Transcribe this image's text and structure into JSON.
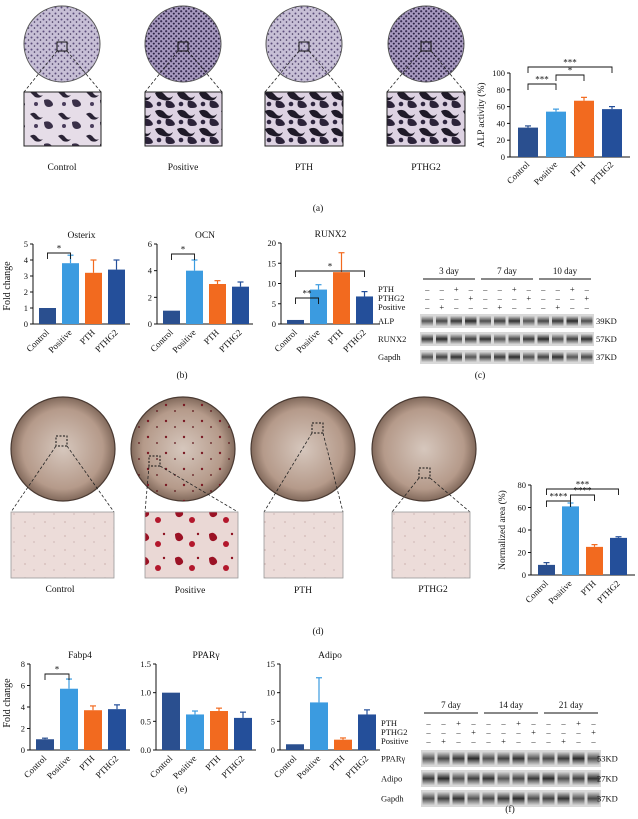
{
  "panels": {
    "a": {
      "label": "(a)",
      "images": [
        "Control",
        "Positive",
        "PTH",
        "PTHG2"
      ],
      "chart_data": {
        "type": "bar",
        "ylabel": "ALP activity (%)",
        "categories": [
          "Control",
          "Positive",
          "PTH",
          "PTHG2"
        ],
        "values": [
          35,
          54,
          67,
          57
        ],
        "errors": [
          2,
          3,
          4,
          3
        ],
        "ylim": [
          0,
          100
        ],
        "yticks": [
          "0",
          "20",
          "40",
          "60",
          "80",
          "100"
        ],
        "significance": [
          "***",
          "*",
          "***"
        ]
      }
    },
    "b": {
      "label": "(b)",
      "ylabel": "Fold change",
      "charts": [
        {
          "type": "bar",
          "title": "Osterix",
          "categories": [
            "Control",
            "Positive",
            "PTH",
            "PTHG2"
          ],
          "values": [
            1.0,
            3.8,
            3.2,
            3.4
          ],
          "errors": [
            0,
            0.5,
            0.8,
            0.6
          ],
          "ylim": [
            0,
            5
          ],
          "yticks": [
            "0",
            "1",
            "2",
            "3",
            "4",
            "5"
          ],
          "significance": [
            "*"
          ]
        },
        {
          "type": "bar",
          "title": "OCN",
          "categories": [
            "Control",
            "Positive",
            "PTH",
            "PTHG2"
          ],
          "values": [
            1.0,
            4.0,
            3.0,
            2.8
          ],
          "errors": [
            0,
            0.8,
            0.25,
            0.35
          ],
          "ylim": [
            0,
            6
          ],
          "yticks": [
            "0",
            "2",
            "4",
            "6"
          ],
          "significance": [
            "*"
          ]
        },
        {
          "type": "bar",
          "title": "RUNX2",
          "categories": [
            "Control",
            "Positive",
            "PTH",
            "PTHG2"
          ],
          "values": [
            1.0,
            8.5,
            12.8,
            6.8
          ],
          "errors": [
            0,
            1.2,
            4.8,
            1.2
          ],
          "ylim": [
            0,
            20
          ],
          "yticks": [
            "0",
            "5",
            "10",
            "15",
            "20"
          ],
          "significance": [
            "**",
            "*"
          ]
        }
      ]
    },
    "c": {
      "label": "(c)",
      "days": [
        "3 day",
        "7 day",
        "10 day"
      ],
      "rows": [
        {
          "name": "PTH",
          "signs": [
            "–",
            "–",
            "+",
            "–",
            "–",
            "–",
            "+",
            "–",
            "–",
            "–",
            "+",
            "–"
          ]
        },
        {
          "name": "PTHG2",
          "signs": [
            "–",
            "–",
            "–",
            "+",
            "–",
            "–",
            "–",
            "+",
            "–",
            "–",
            "–",
            "+"
          ]
        },
        {
          "name": "Positive",
          "signs": [
            "–",
            "+",
            "–",
            "–",
            "–",
            "+",
            "–",
            "–",
            "–",
            "+",
            "–",
            "–"
          ]
        }
      ],
      "bands": [
        {
          "name": "ALP",
          "kd": "39KD"
        },
        {
          "name": "RUNX2",
          "kd": "57KD"
        },
        {
          "name": "Gapdh",
          "kd": "37KD"
        }
      ]
    },
    "d": {
      "label": "(d)",
      "images": [
        "Control",
        "Positive",
        "PTH",
        "PTHG2"
      ],
      "chart_data": {
        "type": "bar",
        "ylabel": "Normalized area (%)",
        "categories": [
          "Control",
          "Positive",
          "PTH",
          "PTHG2"
        ],
        "values": [
          9,
          61,
          25,
          33
        ],
        "errors": [
          2,
          3,
          2,
          1
        ],
        "ylim": [
          0,
          80
        ],
        "yticks": [
          "0",
          "20",
          "40",
          "60",
          "80"
        ],
        "significance": [
          "****",
          "****",
          "***"
        ]
      }
    },
    "e": {
      "label": "(e)",
      "ylabel": "Fold change",
      "charts": [
        {
          "type": "bar",
          "title": "Fabp4",
          "categories": [
            "Control",
            "Positive",
            "PTH",
            "PTHG2"
          ],
          "values": [
            1.0,
            5.7,
            3.7,
            3.8
          ],
          "errors": [
            0.1,
            0.9,
            0.4,
            0.4
          ],
          "ylim": [
            0,
            8
          ],
          "yticks": [
            "0",
            "2",
            "4",
            "6",
            "8"
          ],
          "significance": [
            "*"
          ]
        },
        {
          "type": "bar",
          "title": "PPARγ",
          "categories": [
            "Control",
            "Positive",
            "PTH",
            "PTHG2"
          ],
          "values": [
            1.0,
            0.62,
            0.68,
            0.56
          ],
          "errors": [
            0,
            0.06,
            0.05,
            0.1
          ],
          "ylim": [
            0,
            1.5
          ],
          "yticks": [
            "0.0",
            "0.5",
            "1.0",
            "1.5"
          ],
          "significance": []
        },
        {
          "type": "bar",
          "title": "Adipo",
          "categories": [
            "Control",
            "Positive",
            "PTH",
            "PTHG2"
          ],
          "values": [
            1.0,
            8.3,
            1.8,
            6.2
          ],
          "errors": [
            0,
            4.3,
            0.3,
            0.8
          ],
          "ylim": [
            0,
            15
          ],
          "yticks": [
            "0",
            "5",
            "10",
            "15"
          ],
          "significance": []
        }
      ]
    },
    "f": {
      "label": "(f)",
      "days": [
        "7 day",
        "14 day",
        "21 day"
      ],
      "rows": [
        {
          "name": "PTH",
          "signs": [
            "–",
            "–",
            "+",
            "–",
            "–",
            "–",
            "+",
            "–",
            "–",
            "–",
            "+",
            "–"
          ]
        },
        {
          "name": "PTHG2",
          "signs": [
            "–",
            "–",
            "–",
            "+",
            "–",
            "–",
            "–",
            "+",
            "–",
            "–",
            "–",
            "+"
          ]
        },
        {
          "name": "Positive",
          "signs": [
            "–",
            "+",
            "–",
            "–",
            "–",
            "+",
            "–",
            "–",
            "–",
            "+",
            "–",
            "–"
          ]
        }
      ],
      "bands": [
        {
          "name": "PPARγ",
          "kd": "53KD"
        },
        {
          "name": "Adipo",
          "kd": "27KD"
        },
        {
          "name": "Gapdh",
          "kd": "37KD"
        }
      ]
    }
  },
  "colors": {
    "Control": "#2a4f8f",
    "Positive": "#3b9be0",
    "PTH": "#f26a1f",
    "PTHG2": "#244f9a"
  }
}
